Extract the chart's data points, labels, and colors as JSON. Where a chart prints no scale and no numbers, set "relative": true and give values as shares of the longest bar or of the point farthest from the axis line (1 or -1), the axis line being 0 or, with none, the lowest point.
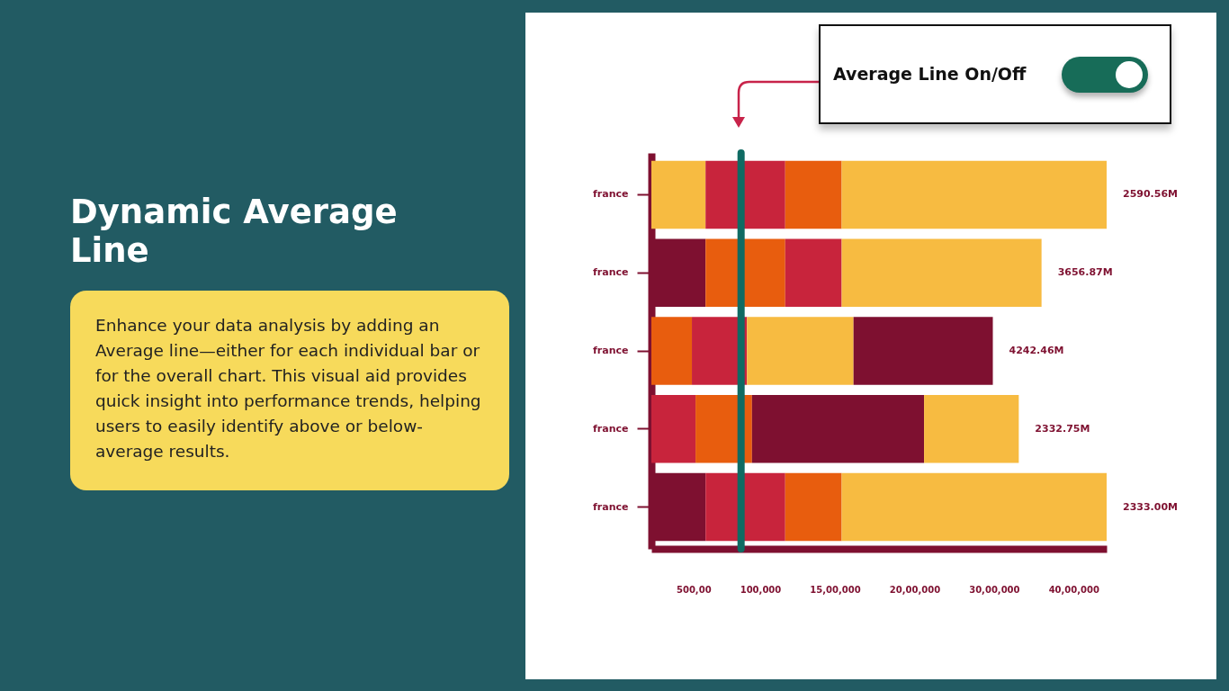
{
  "chart_data": {
    "type": "bar",
    "orientation": "horizontal",
    "stacked": true,
    "relative": true,
    "title": "Dynamic Average Line",
    "subtitle": "Enhance your data analysis by adding an Average line—either for each individual bar or for the overall chart. This visual aid provides quick insight into performance trends, helping users to easily identify above or below-average results.",
    "annotations": [
      "Average Line On/Off",
      "2590.56M",
      "3656.87M",
      "4242.46M",
      "2332.75M",
      "2333.00M",
      "500,00",
      "100,000",
      "15,00,000",
      "20,00,000",
      "30,00,000",
      "40,00,000"
    ],
    "categories": [
      "france",
      "france",
      "france",
      "france",
      "france"
    ],
    "series": [
      {
        "colors": [
          "#f7bb41",
          "#7e1030",
          "#e85d0e",
          "#c8243c",
          "#7e1030"
        ],
        "values": [
          0.119,
          0.119,
          0.089,
          0.097,
          0.119
        ]
      },
      {
        "colors": [
          "#c8243c",
          "#e85d0e",
          "#c8243c",
          "#e85d0e",
          "#c8243c"
        ],
        "values": [
          0.175,
          0.175,
          0.121,
          0.124,
          0.175
        ]
      },
      {
        "colors": [
          "#e85d0e",
          "#c8243c",
          "#f7bb41",
          "#7e1030",
          "#e85d0e"
        ],
        "values": [
          0.124,
          0.124,
          0.234,
          0.378,
          0.124
        ]
      },
      {
        "colors": [
          "#f7bb41",
          "#f7bb41",
          "#7e1030",
          "#f7bb41",
          "#f7bb41"
        ],
        "values": [
          0.582,
          0.439,
          0.306,
          0.208,
          0.582
        ]
      }
    ],
    "ref_lines": [
      {
        "axis": "x",
        "value": 0.197,
        "color": "#0f6b63"
      }
    ],
    "grid": false
  }
}
